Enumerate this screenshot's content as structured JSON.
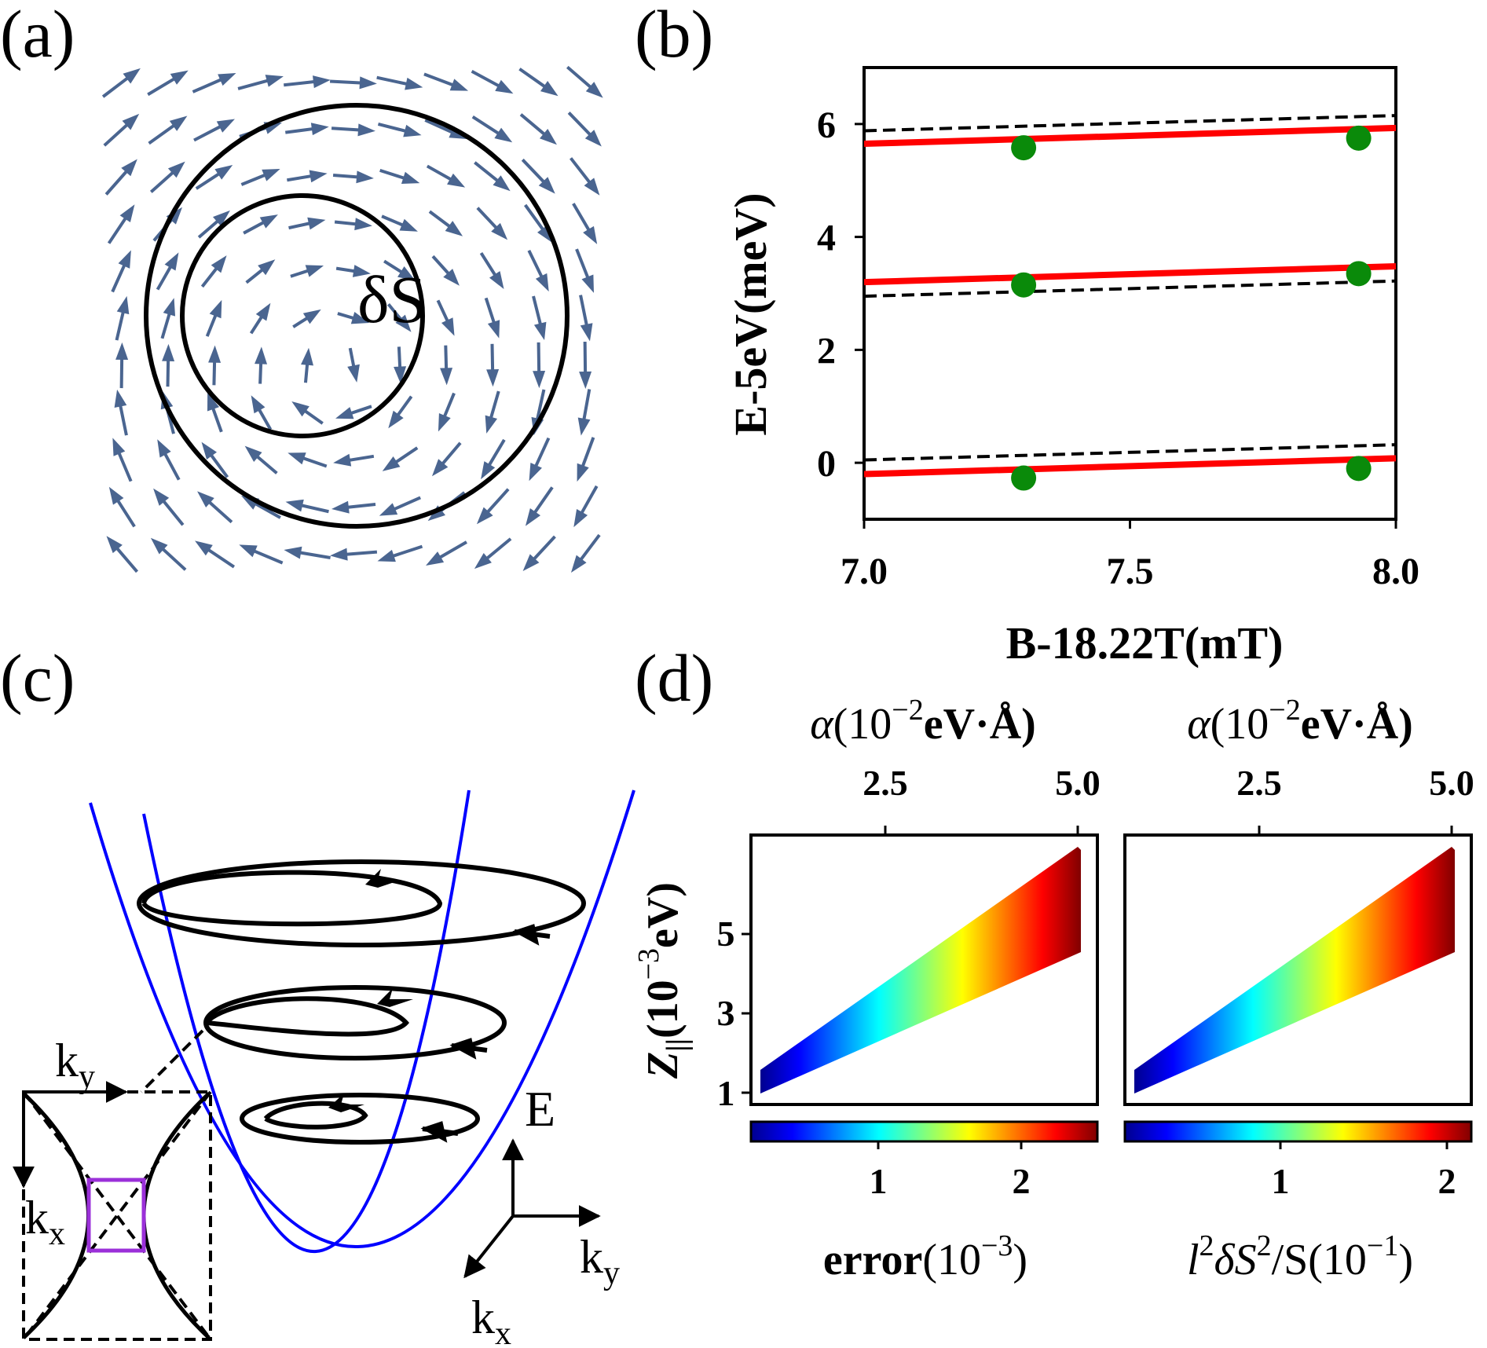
{
  "panels": {
    "a": {
      "tag": "(a)",
      "label": "δS"
    },
    "b": {
      "tag": "(b)",
      "chart_data": {
        "type": "line",
        "xlabel": "B-18.22T(mT)",
        "ylabel": "E-5eV(meV)",
        "xlim": [
          7.0,
          8.0
        ],
        "ylim": [
          -1,
          7
        ],
        "xticks": [
          "7.0",
          "7.5",
          "8.0"
        ],
        "yticks": [
          "0",
          "2",
          "4",
          "6"
        ],
        "series": [
          {
            "style": "solid-red",
            "color": "#ff0000",
            "lines": [
              {
                "x": [
                  7.0,
                  8.0
                ],
                "y": [
                  -0.2,
                  0.08
                ]
              },
              {
                "x": [
                  7.0,
                  8.0
                ],
                "y": [
                  3.2,
                  3.48
                ]
              },
              {
                "x": [
                  7.0,
                  8.0
                ],
                "y": [
                  5.65,
                  5.93
                ]
              }
            ]
          },
          {
            "style": "dashed-black",
            "color": "#000000",
            "lines": [
              {
                "x": [
                  7.0,
                  8.0
                ],
                "y": [
                  0.05,
                  0.32
                ]
              },
              {
                "x": [
                  7.0,
                  8.0
                ],
                "y": [
                  2.95,
                  3.22
                ]
              },
              {
                "x": [
                  7.0,
                  8.0
                ],
                "y": [
                  5.88,
                  6.15
                ]
              }
            ]
          },
          {
            "style": "points-green",
            "color": "#0a8a0a",
            "points": [
              {
                "x": 7.3,
                "y": -0.27
              },
              {
                "x": 7.93,
                "y": -0.1
              },
              {
                "x": 7.3,
                "y": 3.15
              },
              {
                "x": 7.93,
                "y": 3.35
              },
              {
                "x": 7.3,
                "y": 5.58
              },
              {
                "x": 7.93,
                "y": 5.75
              }
            ]
          }
        ]
      }
    },
    "c": {
      "tag": "(c)",
      "energy_label": "E",
      "axis_kx": "k",
      "axis_kx_sub": "x",
      "axis_ky": "k",
      "axis_ky_sub": "y",
      "inset_ky": "k",
      "inset_ky_sub": "y",
      "inset_kx": "k",
      "inset_kx_sub": "x",
      "curve_color": "#0000ff",
      "inset_box_color": "#9b30d9"
    },
    "d": {
      "tag": "(d)",
      "top_axis_label": "α(10",
      "top_axis_exp": "−2",
      "top_axis_unit": "eV·Å)",
      "top_ticks": [
        "2.5",
        "5.0"
      ],
      "ylabel_main": "Z",
      "ylabel_sub": "||",
      "ylabel_rest": "(10",
      "ylabel_exp": "−3",
      "ylabel_unit": "eV)",
      "yticks": [
        "1",
        "3",
        "5"
      ],
      "left_cbar_label": "error(10",
      "left_cbar_exp": "−3",
      "left_cbar_end": ")",
      "left_cbar_ticks": [
        "1",
        "2"
      ],
      "right_cbar_label": "l",
      "right_cbar_label2": "δS",
      "right_cbar_label3": "/S(10",
      "right_cbar_exp": "−1",
      "right_cbar_end": ")",
      "right_cbar_ticks": [
        "1",
        "2"
      ],
      "colormap": "jet"
    }
  }
}
